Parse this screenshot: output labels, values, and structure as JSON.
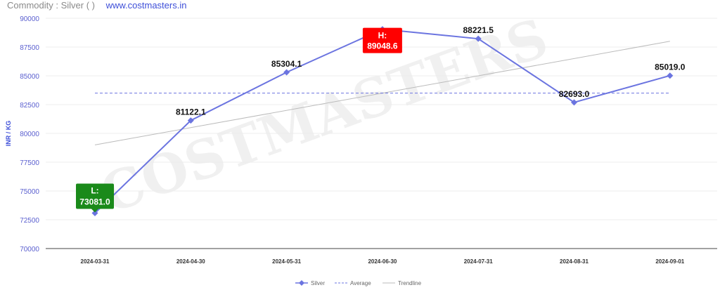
{
  "header": {
    "commodity_label": "Commodity : Silver ( )",
    "site_link": "www.costmasters.in"
  },
  "watermark": "COSTMASTERS",
  "chart_data": {
    "type": "line",
    "ylabel": "INR / KG",
    "xlabel": "",
    "categories": [
      "2024-03-31",
      "2024-04-30",
      "2024-05-31",
      "2024-06-30",
      "2024-07-31",
      "2024-08-31",
      "2024-09-01"
    ],
    "series": [
      {
        "name": "Silver",
        "values": [
          73081.0,
          81122.1,
          85304.1,
          89048.6,
          88221.5,
          82693.0,
          85019.0
        ],
        "color": "#6b74e0"
      },
      {
        "name": "Average",
        "values": [
          83498.5,
          83498.5,
          83498.5,
          83498.5,
          83498.5,
          83498.5,
          83498.5
        ],
        "color": "#6b74e0",
        "style": "dashed"
      },
      {
        "name": "Trendline",
        "values": [
          79000,
          80500,
          82000,
          83500,
          85000,
          86500,
          88000
        ],
        "color": "#bbbbbb"
      }
    ],
    "data_labels": [
      "L:\n73081.0",
      "81122.1",
      "85304.1",
      "H:\n89048.6",
      "88221.5",
      "82693.0",
      "85019.0"
    ],
    "ylim": [
      70000,
      90000
    ],
    "yticks": [
      70000,
      72500,
      75000,
      77500,
      80000,
      82500,
      85000,
      87500,
      90000
    ],
    "low_marker": {
      "label": "L:",
      "value": "73081.0",
      "color": "#1a8a1a"
    },
    "high_marker": {
      "label": "H:",
      "value": "89048.6",
      "color": "#ff0000"
    },
    "legend_position": "bottom-center",
    "grid": true
  }
}
